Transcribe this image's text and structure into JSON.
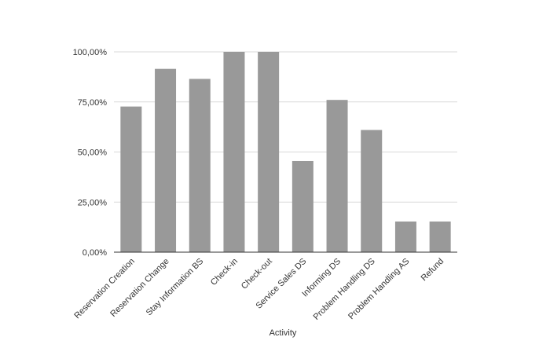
{
  "chart_data": {
    "type": "bar",
    "title": "",
    "xlabel": "Activity",
    "ylabel": "",
    "categories": [
      "Reservation Creation",
      "Reservation Change",
      "Stay Information BS",
      "Check-in",
      "Check-out",
      "Service Sales DS",
      "Informing DS",
      "Problem Handling DS",
      "Problem Handling AS",
      "Refund"
    ],
    "values": [
      72.7,
      91.5,
      86.5,
      100,
      100,
      45.5,
      76.0,
      61.0,
      15.3,
      15.3
    ],
    "ylim": [
      0,
      100
    ],
    "yticks": [
      0,
      25,
      50,
      75,
      100
    ],
    "ytick_labels": [
      "0,00%",
      "25,00%",
      "50,00%",
      "75,00%",
      "100,00%"
    ],
    "grid": true,
    "legend": "none",
    "colors": {
      "bar": "#999999",
      "grid": "#d9d9d9",
      "axis": "#333333",
      "text": "#333333"
    }
  }
}
